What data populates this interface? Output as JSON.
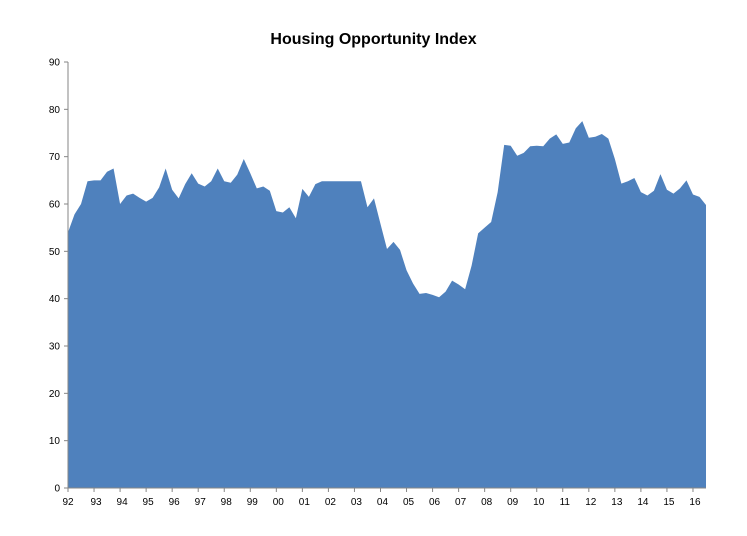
{
  "chart_data": {
    "type": "area",
    "title": "Housing Opportunity Index",
    "xlabel": "",
    "ylabel": "",
    "ylim": [
      0,
      90
    ],
    "yticks": [
      0,
      10,
      20,
      30,
      40,
      50,
      60,
      70,
      80,
      90
    ],
    "xticks": [
      "92",
      "93",
      "94",
      "95",
      "96",
      "97",
      "98",
      "99",
      "00",
      "01",
      "02",
      "03",
      "04",
      "05",
      "06",
      "07",
      "08",
      "09",
      "10",
      "11",
      "12",
      "13",
      "14",
      "15",
      "16"
    ],
    "x_start": 1992.0,
    "x_step": 0.25,
    "grid": false,
    "legend": "none",
    "color": "#4F81BD",
    "series": [
      {
        "values": [
          54.0,
          57.8,
          60.0,
          64.8,
          65.0,
          65.0,
          66.8,
          67.5,
          60.0,
          61.8,
          62.2,
          61.3,
          60.5,
          61.3,
          63.5,
          67.5,
          63.0,
          61.2,
          64.2,
          66.5,
          64.3,
          63.7,
          64.8,
          67.5,
          64.8,
          64.5,
          66.2,
          69.5,
          66.5,
          63.3,
          63.7,
          62.8,
          58.5,
          58.2,
          59.3,
          57.0,
          63.2,
          61.5,
          64.2,
          64.8,
          64.8,
          64.8,
          64.8,
          64.8,
          64.8,
          64.8,
          59.3,
          61.2,
          55.8,
          50.5,
          52.0,
          50.3,
          46.0,
          43.2,
          41.0,
          41.2,
          40.8,
          40.3,
          41.5,
          43.8,
          43.0,
          42.0,
          47.0,
          53.8,
          55.0,
          56.2,
          62.5,
          72.5,
          72.3,
          70.2,
          70.8,
          72.2,
          72.3,
          72.2,
          73.8,
          74.7,
          72.7,
          73.0,
          76.0,
          77.5,
          74.0,
          74.2,
          74.8,
          73.8,
          69.5,
          64.3,
          64.8,
          65.5,
          62.5,
          61.8,
          62.8,
          66.3,
          63.0,
          62.2,
          63.3,
          65.0,
          62.0,
          61.5,
          59.8
        ]
      }
    ]
  }
}
